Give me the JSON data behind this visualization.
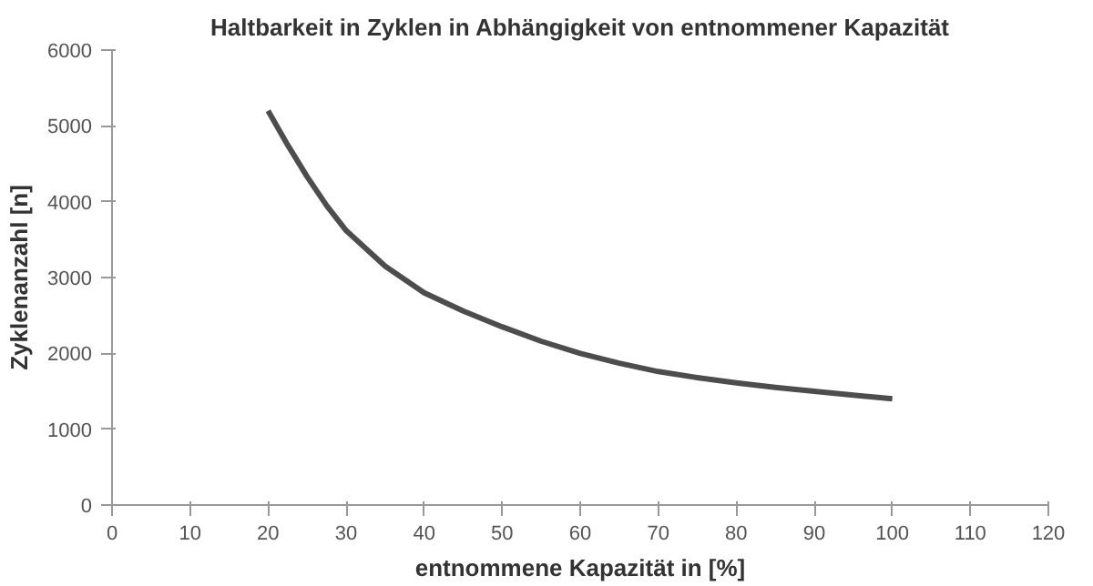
{
  "chart_data": {
    "type": "line",
    "title": "Haltbarkeit in Zyklen in Abhängigkeit von entnommener Kapazität",
    "xlabel": "entnommene Kapazität in [%]",
    "ylabel": "Zyklenanzahl [n]",
    "x": [
      20,
      22.5,
      25,
      27.5,
      30,
      35,
      40,
      45,
      50,
      55,
      60,
      65,
      70,
      75,
      80,
      85,
      90,
      95,
      100
    ],
    "series": [
      {
        "color": "#4d4d4d",
        "values": [
          5200,
          4750,
          4330,
          3950,
          3620,
          3150,
          2800,
          2560,
          2350,
          2160,
          2000,
          1870,
          1760,
          1680,
          1610,
          1550,
          1500,
          1450,
          1400
        ]
      }
    ],
    "xlim": [
      0,
      120
    ],
    "xticks": [
      0,
      10,
      20,
      30,
      40,
      50,
      60,
      70,
      80,
      90,
      100,
      110,
      120
    ],
    "ylim": [
      0,
      6000
    ],
    "yticks": [
      0,
      1000,
      2000,
      3000,
      4000,
      5000,
      6000
    ],
    "grid": false,
    "marker": "none",
    "line_style": "solid"
  }
}
